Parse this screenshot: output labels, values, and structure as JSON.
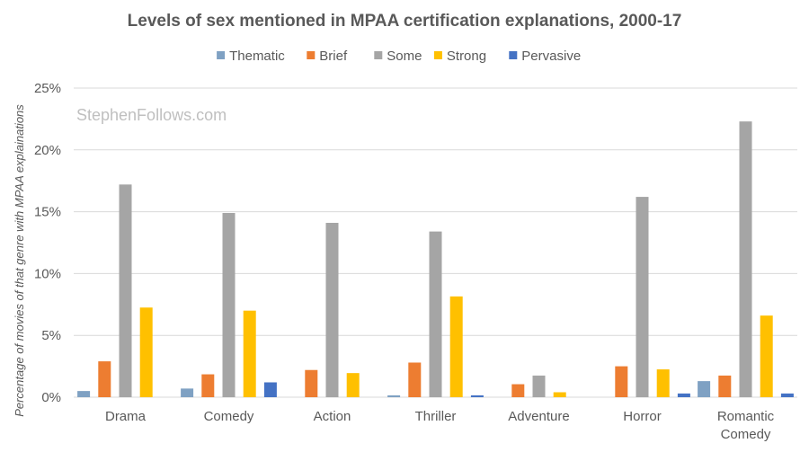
{
  "chart_data": {
    "type": "bar",
    "title": "Levels of sex mentioned in MPAA certification explanations, 2000-17",
    "ylabel": "Percentage of movies of that genre with MPAA explainations",
    "xlabel": "",
    "watermark": "StephenFollows.com",
    "categories": [
      [
        "Drama"
      ],
      [
        "Comedy"
      ],
      [
        "Action"
      ],
      [
        "Thriller"
      ],
      [
        "Adventure"
      ],
      [
        "Horror"
      ],
      [
        "Romantic",
        "Comedy"
      ]
    ],
    "ylim": [
      0,
      25
    ],
    "yticks": [
      0,
      5,
      10,
      15,
      20,
      25
    ],
    "ytick_labels": [
      "0%",
      "5%",
      "10%",
      "15%",
      "20%",
      "25%"
    ],
    "grid": true,
    "legend_position": "top",
    "series": [
      {
        "name": "Thematic",
        "color": "#7fa1c3",
        "values": [
          0.5,
          0.7,
          0,
          0.15,
          0,
          0,
          1.3
        ]
      },
      {
        "name": "Brief",
        "color": "#ed7d31",
        "values": [
          2.9,
          1.85,
          2.2,
          2.8,
          1.05,
          2.5,
          1.75
        ]
      },
      {
        "name": "Some",
        "color": "#a5a5a5",
        "values": [
          17.2,
          14.9,
          14.1,
          13.4,
          1.75,
          16.2,
          22.3
        ]
      },
      {
        "name": "Strong",
        "color": "#ffc000",
        "values": [
          7.25,
          7.0,
          1.95,
          8.15,
          0.4,
          2.25,
          6.6
        ]
      },
      {
        "name": "Pervasive",
        "color": "#4472c4",
        "values": [
          0,
          1.2,
          0,
          0.15,
          0,
          0.3,
          0.3
        ]
      }
    ]
  }
}
